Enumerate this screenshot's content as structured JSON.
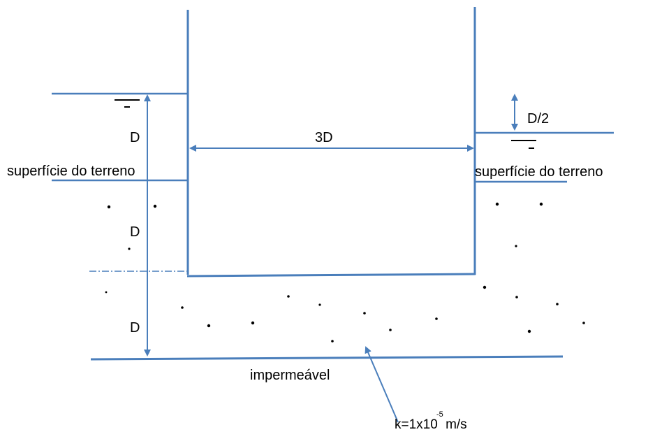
{
  "labels": {
    "depth_upper": "D",
    "depth_middle": "D",
    "depth_lower": "D",
    "width": "3D",
    "head_difference": "D/2",
    "ground_surface_left": "superfície do terreno",
    "ground_surface_right": "superfície do terreno",
    "impermeable": "impermeável",
    "permeability_prefix": "k=1x10",
    "permeability_exponent": "-5",
    "permeability_unit": " m/s"
  },
  "colors": {
    "line": "#4a7ebb",
    "text": "#000000",
    "water_symbol": "#000000"
  }
}
